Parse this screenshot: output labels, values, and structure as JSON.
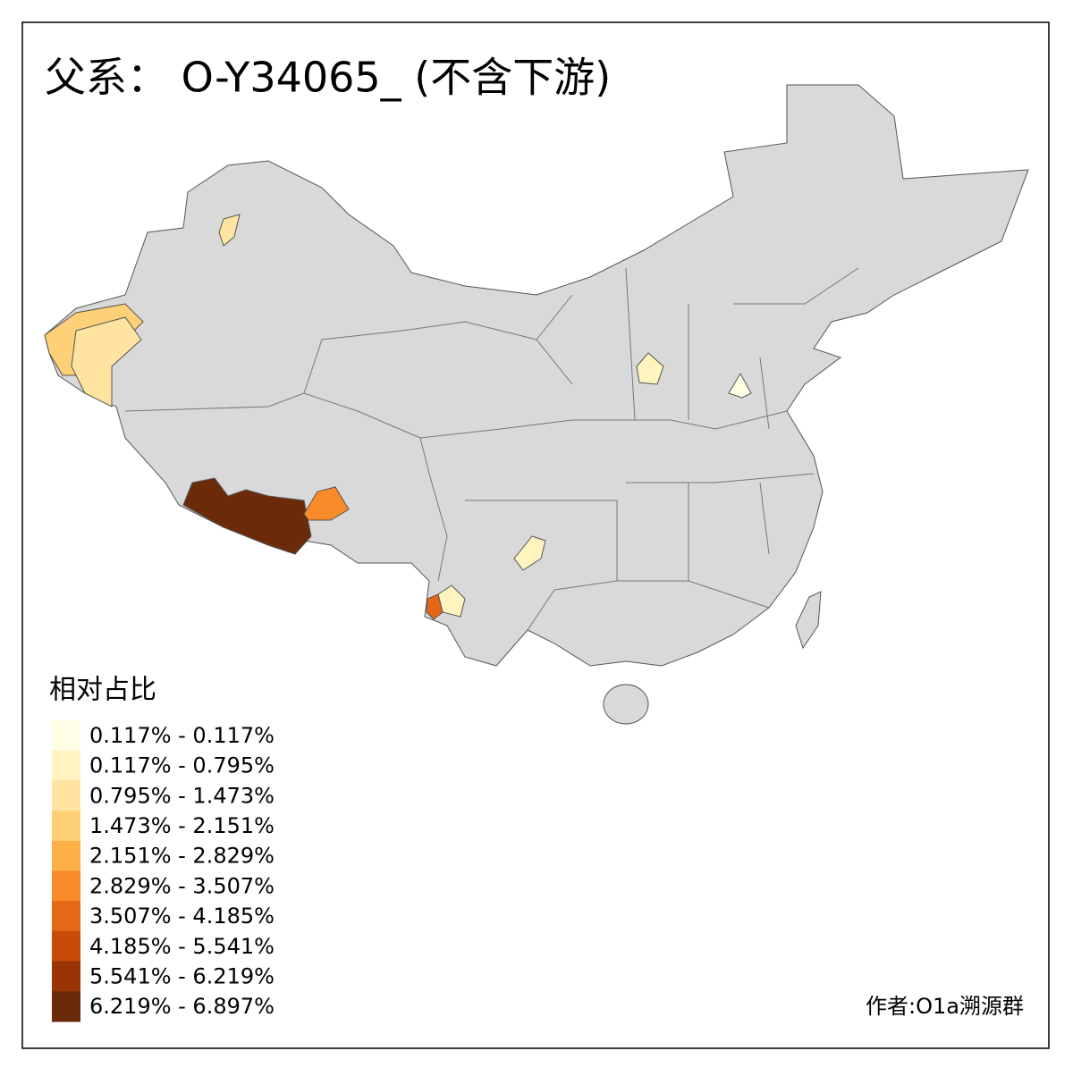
{
  "title": "父系： O-Y34065_ (不含下游)",
  "legend": {
    "title": "相对占比",
    "items": [
      {
        "label": "0.117% - 0.117%",
        "color": "#fffde4"
      },
      {
        "label": "0.117% - 0.795%",
        "color": "#fff4c0"
      },
      {
        "label": "0.795% - 1.473%",
        "color": "#fee4a0"
      },
      {
        "label": "1.473% - 2.151%",
        "color": "#fed078"
      },
      {
        "label": "2.151% - 2.829%",
        "color": "#fdb048"
      },
      {
        "label": "2.829% - 3.507%",
        "color": "#f98b2a"
      },
      {
        "label": "3.507% - 4.185%",
        "color": "#e56816"
      },
      {
        "label": "4.185% - 5.541%",
        "color": "#c94b0a"
      },
      {
        "label": "5.541% - 6.219%",
        "color": "#9a3406"
      },
      {
        "label": "6.219% - 6.897%",
        "color": "#6b2a08"
      }
    ]
  },
  "credit": "作者:O1a溯源群"
}
